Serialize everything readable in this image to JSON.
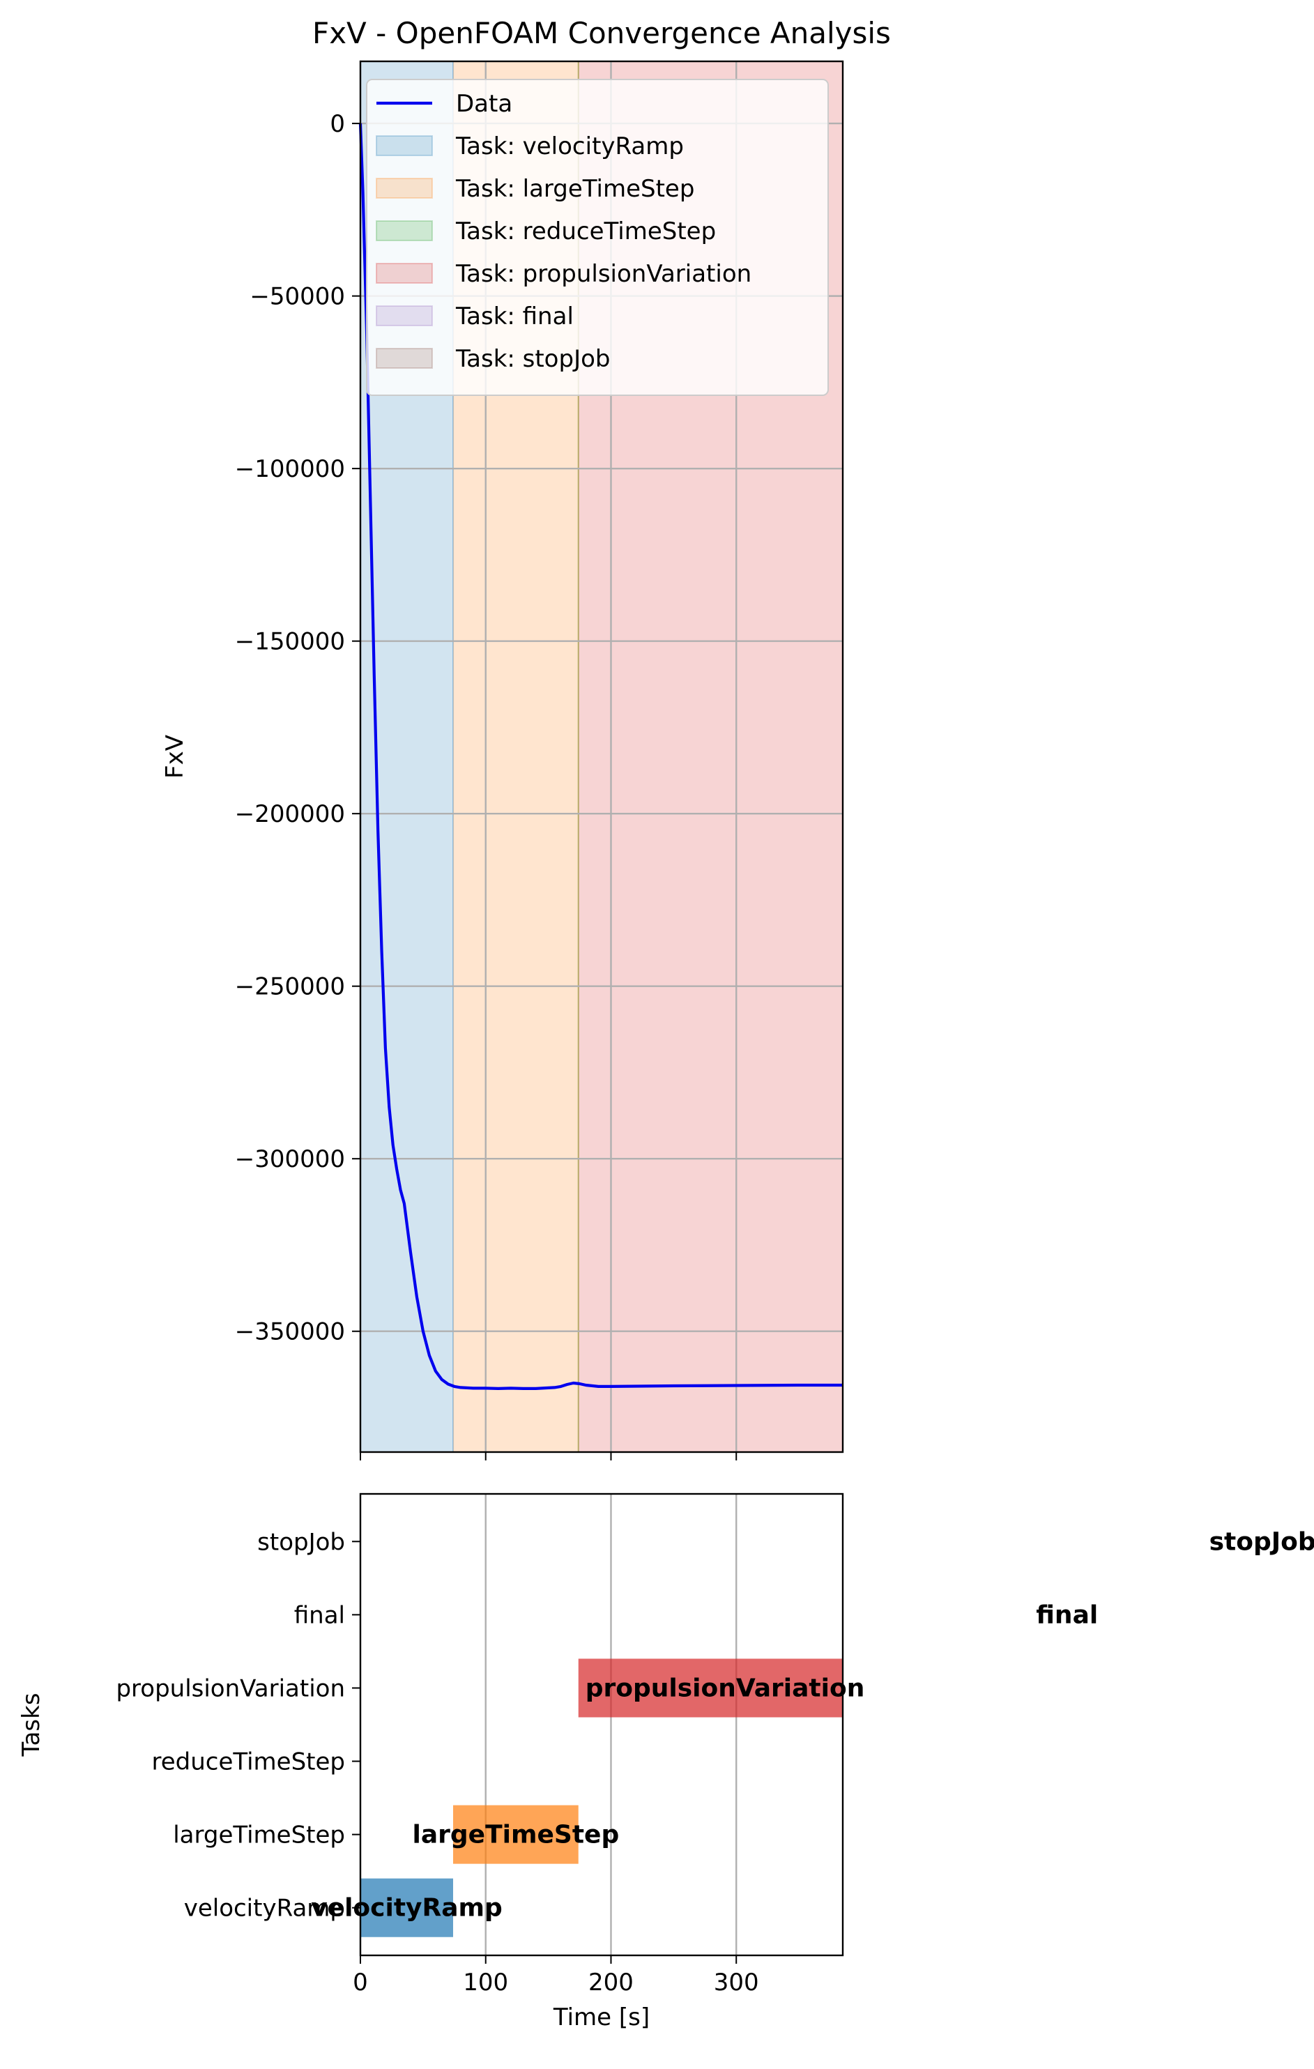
{
  "chart_data": [
    {
      "type": "line",
      "title": "FxV - OpenFOAM Convergence Analysis",
      "xlabel": "",
      "ylabel": "FxV",
      "xlim": [
        0,
        385
      ],
      "ylim": [
        -385000,
        18000
      ],
      "yticks": [
        0,
        -50000,
        -100000,
        -150000,
        -200000,
        -250000,
        -300000,
        -350000
      ],
      "ytick_labels": [
        "0",
        "−50000",
        "−100000",
        "−150000",
        "−200000",
        "−250000",
        "−300000",
        "−350000"
      ],
      "xticks": [
        0,
        100,
        200,
        300
      ],
      "grid": true,
      "legend_position": "top-left",
      "series": [
        {
          "name": "Data",
          "color": "#0000ee",
          "x": [
            0,
            2,
            5,
            8,
            11,
            14,
            17,
            20,
            23,
            26,
            29,
            32,
            35,
            40,
            45,
            50,
            55,
            60,
            65,
            70,
            75,
            80,
            90,
            100,
            110,
            120,
            130,
            140,
            150,
            155,
            160,
            165,
            170,
            175,
            180,
            190,
            200,
            250,
            300,
            350,
            385
          ],
          "y": [
            0,
            -20000,
            -60000,
            -110000,
            -160000,
            -205000,
            -240000,
            -268000,
            -285000,
            -296000,
            -303000,
            -309000,
            -313000,
            -327000,
            -340000,
            -350000,
            -357000,
            -361500,
            -364000,
            -365300,
            -366000,
            -366300,
            -366500,
            -366500,
            -366600,
            -366500,
            -366600,
            -366600,
            -366400,
            -366300,
            -366000,
            -365400,
            -365000,
            -365200,
            -365600,
            -366000,
            -366000,
            -365800,
            -365700,
            -365600,
            -365600
          ]
        }
      ],
      "task_spans": [
        {
          "label": "Task: velocityRamp",
          "start": 0,
          "end": 74,
          "color": "#1f77b4"
        },
        {
          "label": "Task: largeTimeStep",
          "start": 74,
          "end": 174,
          "color": "#ff7f0e"
        },
        {
          "label": "Task: reduceTimeStep",
          "start": 174,
          "end": 174,
          "color": "#2ca02c"
        },
        {
          "label": "Task: propulsionVariation",
          "start": 174,
          "end": 385,
          "color": "#d62728"
        },
        {
          "label": "Task: final",
          "start": null,
          "end": null,
          "color": "#9467bd"
        },
        {
          "label": "Task: stopJob",
          "start": null,
          "end": null,
          "color": "#8c564b"
        }
      ]
    },
    {
      "type": "bar",
      "title": "",
      "xlabel": "Time [s]",
      "ylabel": "Tasks",
      "xlim": [
        0,
        385
      ],
      "xticks": [
        0,
        100,
        200,
        300
      ],
      "xtick_labels": [
        "0",
        "100",
        "200",
        "300"
      ],
      "grid": true,
      "categories": [
        "velocityRamp",
        "largeTimeStep",
        "reduceTimeStep",
        "propulsionVariation",
        "final",
        "stopJob"
      ],
      "bars": [
        {
          "task": "velocityRamp",
          "start": 0,
          "end": 74,
          "color": "#1f77b4",
          "text": "velocityRamp",
          "text_x": 37
        },
        {
          "task": "largeTimeStep",
          "start": 74,
          "end": 174,
          "color": "#ff7f0e",
          "text": "largeTimeStep",
          "text_x": 124
        },
        {
          "task": "reduceTimeStep",
          "start": 174,
          "end": 174,
          "color": "#2ca02c",
          "text": "",
          "text_x": 174
        },
        {
          "task": "propulsionVariation",
          "start": 174,
          "end": 385,
          "color": "#d62728",
          "text": "propulsionVariation",
          "text_x": 291
        },
        {
          "task": "final",
          "start": null,
          "end": null,
          "color": "#9467bd",
          "text": "final",
          "text_x": 564
        },
        {
          "task": "stopJob",
          "start": null,
          "end": null,
          "color": "#8c564b",
          "text": "stopJob",
          "text_x": 720
        }
      ]
    }
  ]
}
